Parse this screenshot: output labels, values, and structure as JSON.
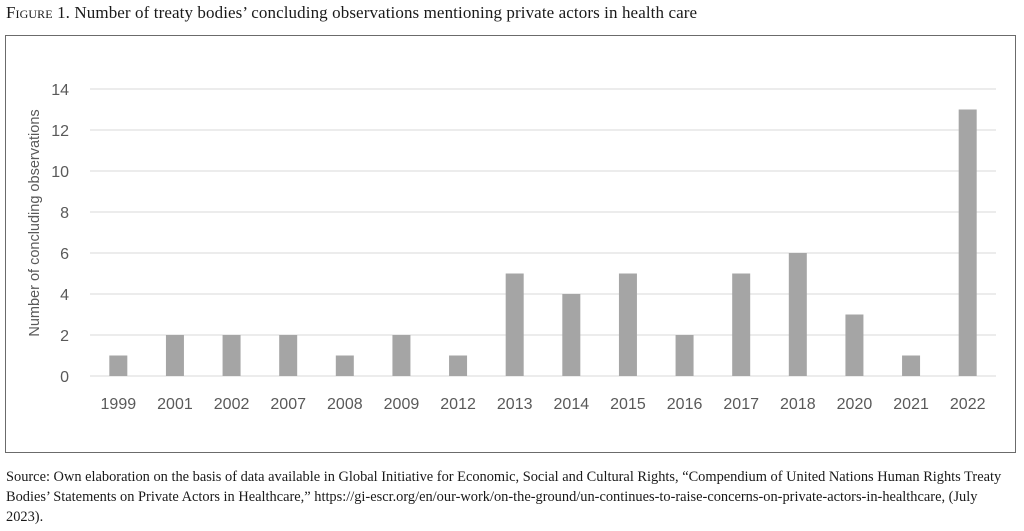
{
  "figure": {
    "label": "Figure 1.",
    "title": "Number of treaty bodies’ concluding observations mentioning private actors in health care"
  },
  "source": {
    "text": "Source: Own elaboration on the basis of data available in Global Initiative for Economic, Social and Cultural Rights, “Compendium of United Nations Human Rights Treaty Bodies’ Statements on Private Actors in Healthcare,” https://gi-escr.org/en/our-work/on-the-ground/un-continues-to-raise-concerns-on-private-actors-in-healthcare, (July 2023)."
  },
  "colors": {
    "bar": "#a5a5a5",
    "grid": "#d9d9d9",
    "axis_text": "#595959",
    "frame": "#6b6b6b"
  },
  "chart_data": {
    "type": "bar",
    "title": "",
    "xlabel": "",
    "ylabel": "Number  of concluding observations",
    "categories": [
      "1999",
      "2001",
      "2002",
      "2007",
      "2008",
      "2009",
      "2012",
      "2013",
      "2014",
      "2015",
      "2016",
      "2017",
      "2018",
      "2020",
      "2021",
      "2022"
    ],
    "values": [
      1,
      2,
      2,
      2,
      1,
      2,
      1,
      5,
      4,
      5,
      2,
      5,
      6,
      3,
      1,
      13
    ],
    "ylim": [
      0,
      14
    ],
    "yticks": [
      "0",
      "2",
      "4",
      "6",
      "8",
      "10",
      "12",
      "14"
    ],
    "grid": true,
    "legend": "none"
  }
}
